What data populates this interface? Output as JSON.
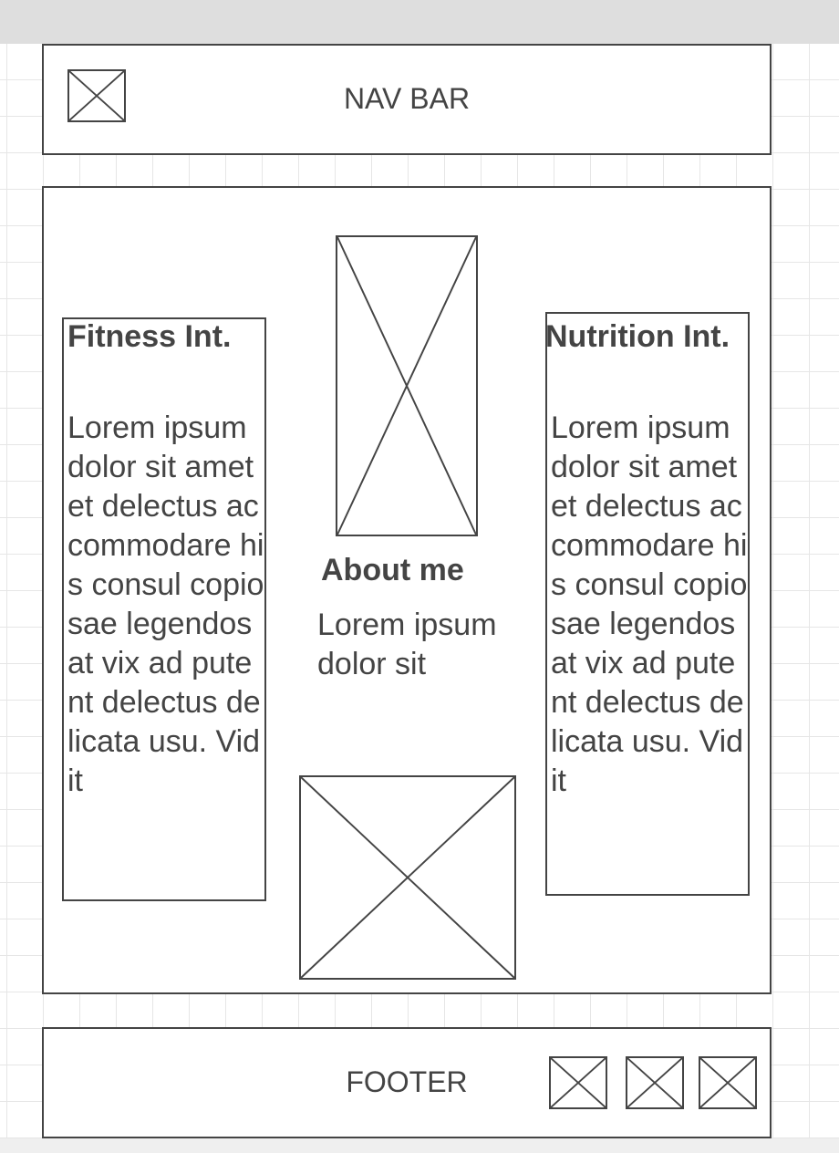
{
  "navbar": {
    "label": "NAV BAR",
    "logo_icon": "image-placeholder-icon"
  },
  "left_column": {
    "title": "Fitness Int.",
    "body": "Lorem ipsum dolor sit amet et delectus accommodare his consul copiosae legendos at vix ad putent delectus delicata usu. Vidit"
  },
  "center_column": {
    "image_icon": "image-placeholder-icon",
    "title": "About me",
    "body": "Lorem ipsum dolor sit",
    "bottom_image_icon": "image-placeholder-icon"
  },
  "right_column": {
    "title": "Nutrition Int.",
    "body": "Lorem ipsum dolor sit amet et delectus accommodare his consul copiosae legendos at vix ad putent delectus delicata usu. Vidit"
  },
  "footer": {
    "label": "FOOTER",
    "icons": [
      "image-placeholder-icon",
      "image-placeholder-icon",
      "image-placeholder-icon"
    ]
  },
  "colors": {
    "stroke": "#444444",
    "grid": "#e6e6e6",
    "toolbar": "#dedede"
  }
}
